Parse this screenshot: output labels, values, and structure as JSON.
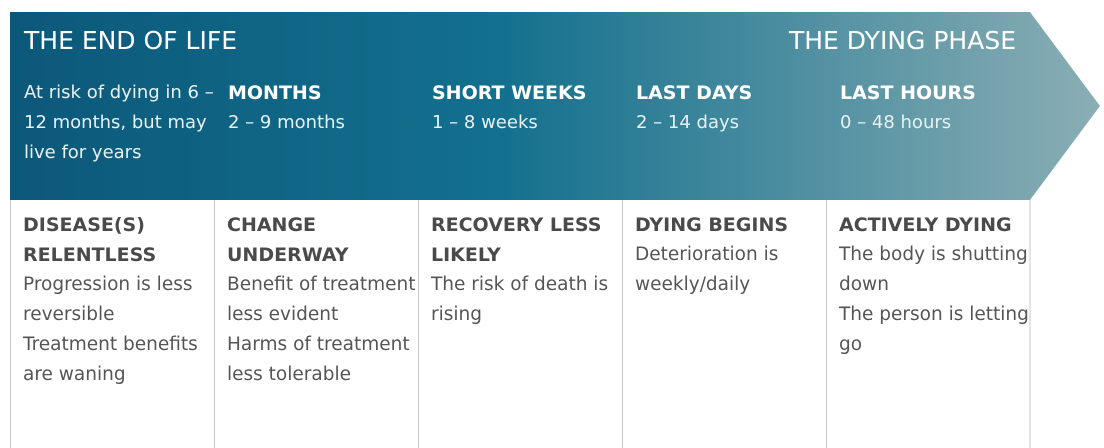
{
  "header": {
    "left_title": "THE END OF LIFE",
    "right_title": "THE DYING PHASE"
  },
  "phases": [
    {
      "range": "At risk of dying in 6 – 12 months, but may live for years",
      "title": "DISEASE(S) RELENTLESS",
      "description": [
        "Progression is less reversible",
        "Treatment benefits are waning"
      ]
    },
    {
      "label": "MONTHS",
      "range": "2 – 9 months",
      "title": "CHANGE UNDERWAY",
      "description": [
        "Benefit of treatment less evident",
        "Harms of treatment less tolerable"
      ]
    },
    {
      "label": "SHORT WEEKS",
      "range": "1 – 8 weeks",
      "title": "RECOVERY LESS LIKELY",
      "description": [
        "The risk of death is rising"
      ]
    },
    {
      "label": "LAST DAYS",
      "range": "2 – 14 days",
      "title": "DYING BEGINS",
      "description": [
        "Deterioration is weekly/daily"
      ]
    },
    {
      "label": "LAST HOURS",
      "range": "0 – 48 hours",
      "title": "ACTIVELY DYING",
      "description": [
        "The body is shutting down",
        "The person is letting go"
      ]
    }
  ]
}
